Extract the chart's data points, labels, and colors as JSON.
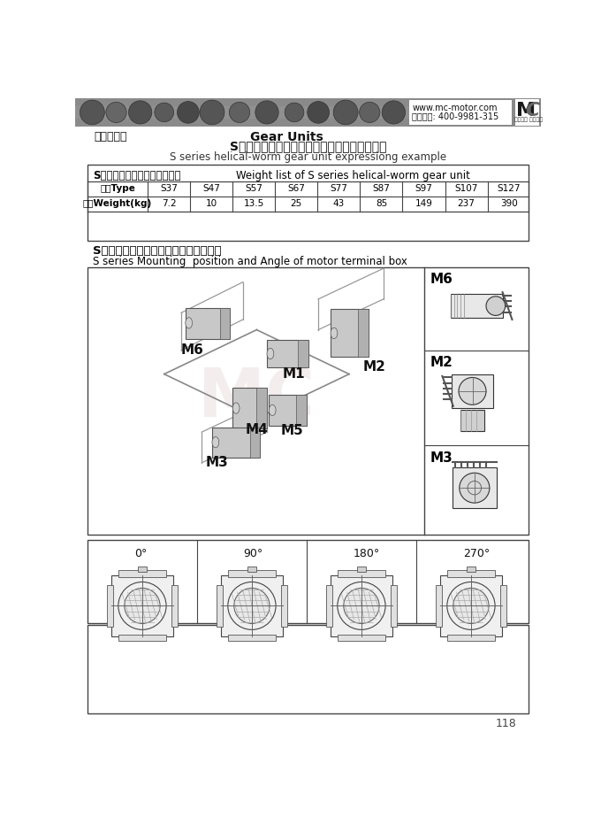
{
  "title_cn": "S系列斜齿轮蜗轮减速机型号规格表示方法示例",
  "title_en": "S series helical-worm gear unit expressiong example",
  "header_left": "齿轮减速机",
  "header_center": "Gear Units",
  "website": "www.mc-motor.com",
  "phone": "免费和询: 400-9981-315",
  "brand_top": "源自台湾 欧洲技术",
  "table_title_cn": "S系列斜齿轮蜗轮减速机重量表",
  "table_title_en": "Weight list of S series helical-worm gear unit",
  "table_headers": [
    "型号Type",
    "S37",
    "S47",
    "S57",
    "S67",
    "S77",
    "S87",
    "S97",
    "S107",
    "S127"
  ],
  "table_row_label": "重量Weight(kg)",
  "table_values": [
    "7.2",
    "10",
    "13.5",
    "25",
    "43",
    "85",
    "149",
    "237",
    "390"
  ],
  "section2_cn": "S系列减速机安装方位和电机接线盒角度",
  "section2_en": "S series Mounting  position and Angle of motor terminal box",
  "mount_labels": [
    "M6",
    "M1",
    "M2",
    "M3",
    "M4",
    "M5"
  ],
  "angle_labels": [
    "0°",
    "90°",
    "180°",
    "270°"
  ],
  "page_number": "118",
  "bg_color": "#ffffff",
  "text_color": "#111111"
}
